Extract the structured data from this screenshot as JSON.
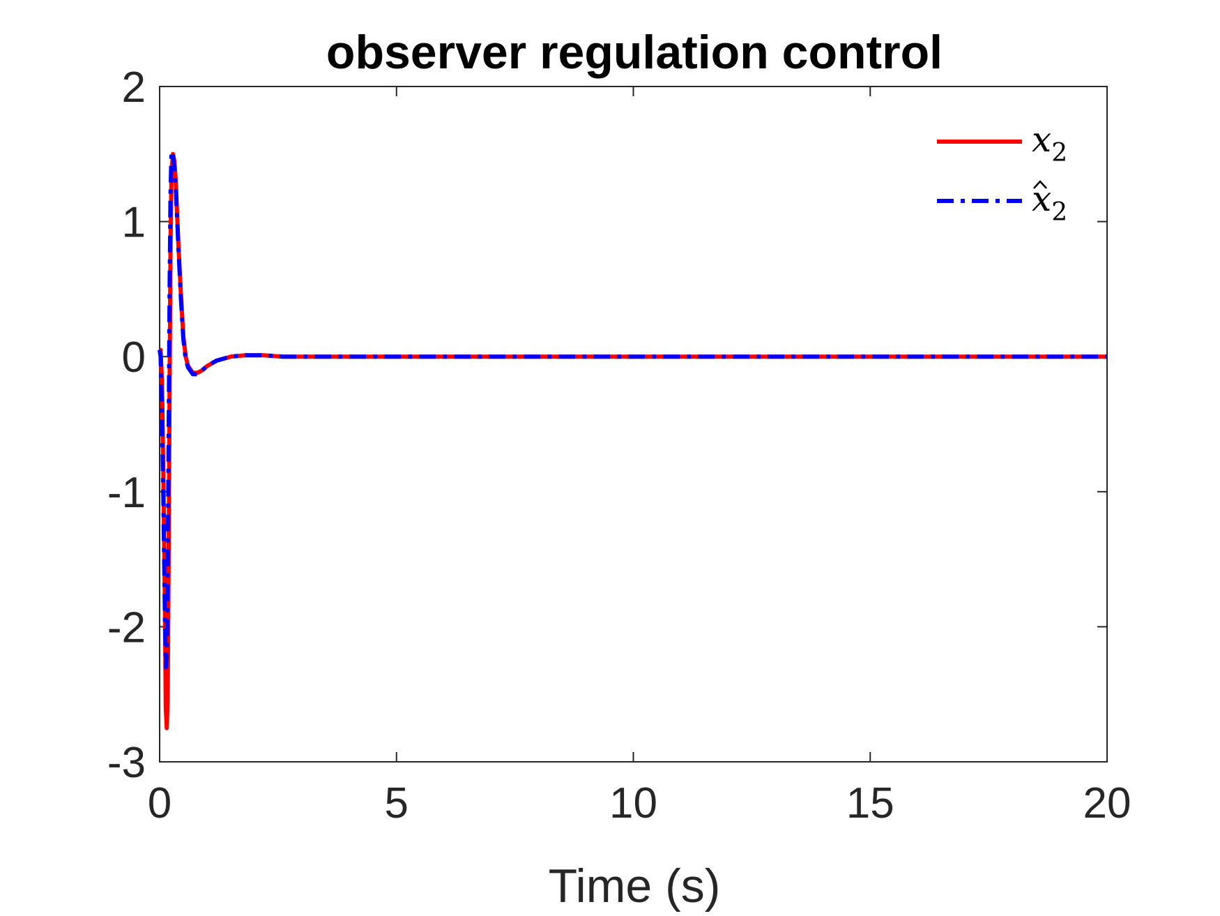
{
  "chart_data": {
    "type": "line",
    "title": "observer regulation control",
    "xlabel": "Time (s)",
    "ylabel": "",
    "xlim": [
      0,
      20
    ],
    "ylim": [
      -3,
      2
    ],
    "xticks": [
      0,
      5,
      10,
      15,
      20
    ],
    "yticks": [
      2,
      1,
      0,
      -1,
      -2,
      -3
    ],
    "xtick_labels": [
      "0",
      "5",
      "10",
      "15",
      "20"
    ],
    "ytick_labels": [
      "2",
      "1",
      "0",
      "-1",
      "-2",
      "-3"
    ],
    "grid": false,
    "legend_position": "top-right",
    "series": [
      {
        "name": "x2",
        "legend_base": "x",
        "legend_sub": "2",
        "legend_hat": false,
        "color": "#ff0000",
        "style": "solid",
        "x": [
          0,
          0.02,
          0.05,
          0.08,
          0.11,
          0.13,
          0.15,
          0.17,
          0.19,
          0.21,
          0.23,
          0.25,
          0.28,
          0.31,
          0.34,
          0.37,
          0.4,
          0.45,
          0.5,
          0.55,
          0.6,
          0.7,
          0.8,
          0.9,
          1.0,
          1.2,
          1.5,
          1.8,
          2.2,
          2.6,
          3.0,
          4.0,
          6.0,
          10.0,
          15.0,
          20.0
        ],
        "y": [
          0.05,
          0.05,
          -0.2,
          -0.9,
          -1.8,
          -2.6,
          -2.75,
          -2.5,
          -1.5,
          -0.2,
          0.8,
          1.35,
          1.5,
          1.45,
          1.3,
          1.05,
          0.8,
          0.45,
          0.15,
          0.0,
          -0.07,
          -0.12,
          -0.12,
          -0.1,
          -0.07,
          -0.03,
          0.0,
          0.01,
          0.01,
          0.0,
          0.0,
          0.0,
          0.0,
          0.0,
          0.0,
          0.0
        ]
      },
      {
        "name": "x̂2",
        "legend_base": "x",
        "legend_sub": "2",
        "legend_hat": true,
        "color": "#0000ff",
        "style": "dashdot",
        "x": [
          0,
          0.02,
          0.05,
          0.08,
          0.11,
          0.13,
          0.15,
          0.17,
          0.19,
          0.21,
          0.23,
          0.25,
          0.28,
          0.31,
          0.34,
          0.37,
          0.4,
          0.45,
          0.5,
          0.55,
          0.6,
          0.7,
          0.8,
          0.9,
          1.0,
          1.2,
          1.5,
          1.8,
          2.2,
          2.6,
          3.0,
          4.0,
          6.0,
          10.0,
          15.0,
          20.0
        ],
        "y": [
          0.05,
          0.0,
          -0.4,
          -1.1,
          -1.9,
          -2.3,
          -2.2,
          -1.6,
          -0.6,
          0.5,
          1.2,
          1.52,
          1.5,
          1.4,
          1.25,
          1.02,
          0.78,
          0.42,
          0.13,
          -0.02,
          -0.08,
          -0.13,
          -0.13,
          -0.1,
          -0.07,
          -0.03,
          0.0,
          0.01,
          0.01,
          0.0,
          0.0,
          0.0,
          0.0,
          0.0,
          0.0,
          0.0
        ]
      }
    ]
  }
}
